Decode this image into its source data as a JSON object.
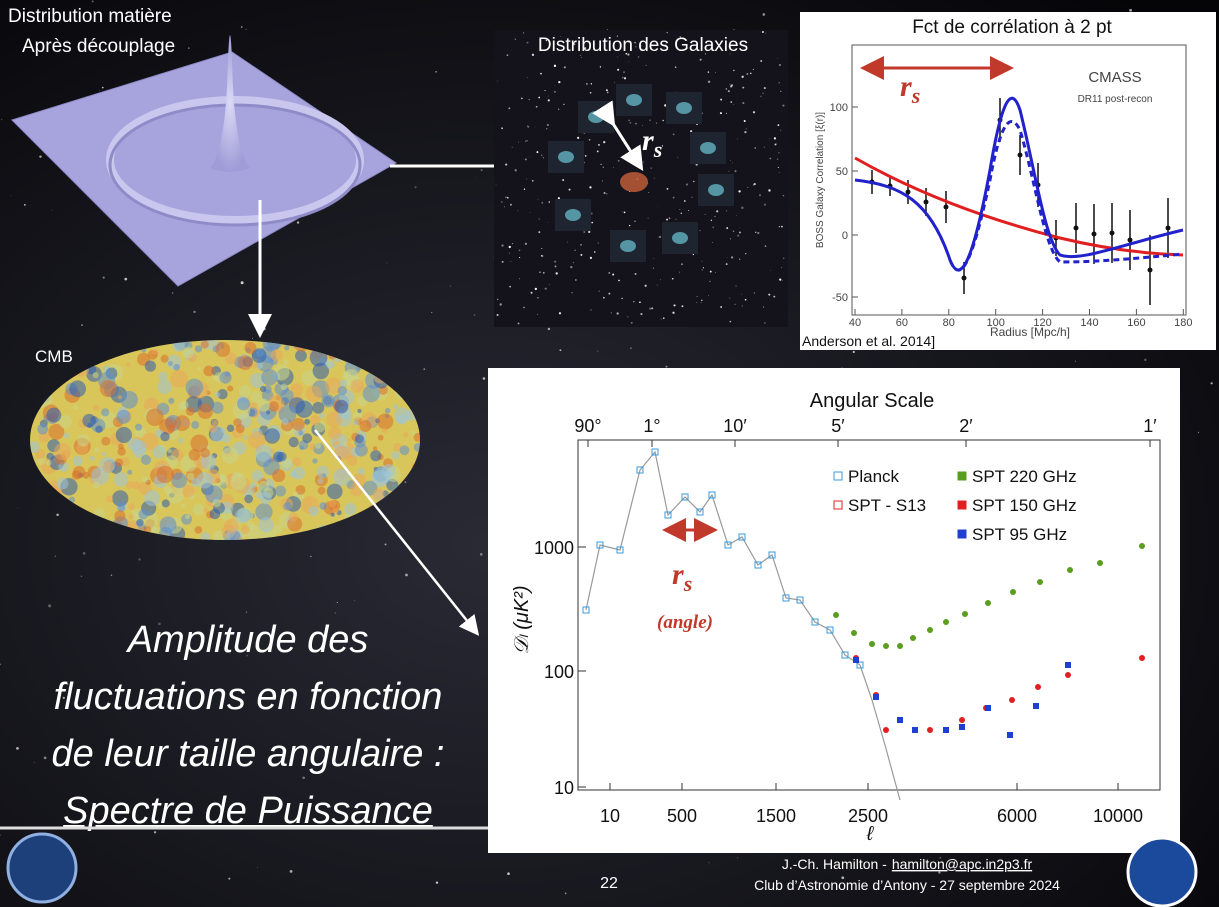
{
  "matter": {
    "title_line1": "Distribution matière",
    "title_line2": "Après découplage"
  },
  "galaxies": {
    "title": "Distribution des Galaxies",
    "rs": {
      "symbol": "r",
      "subscript": "s"
    }
  },
  "correlation": {
    "title": "Fct de corrélation à 2 pt",
    "rs": {
      "symbol": "r",
      "subscript": "s"
    },
    "legend_title": "CMASS",
    "legend_subtitle": "DR11 post-recon",
    "y_label": "BOSS Galaxy Correlation [ξ(r)]",
    "x_label": "Radius [Mpc/h]",
    "y_ticks": [
      "100",
      "50",
      "0",
      "-50"
    ],
    "x_ticks": [
      "40",
      "60",
      "80",
      "100",
      "120",
      "140",
      "160",
      "180"
    ],
    "citation": "Anderson et al. 2014]"
  },
  "cmb": {
    "label": "CMB"
  },
  "power_spectrum": {
    "title": "Angular Scale",
    "top_ticks": [
      "90°",
      "1°",
      "10′",
      "5′",
      "2′",
      "1′"
    ],
    "y_label": "𝒟ₗ (μK²)",
    "y_ticks": [
      "1000",
      "100",
      "10"
    ],
    "x_ticks": [
      "10",
      "500",
      "1500",
      "2500",
      "6000",
      "10000"
    ],
    "x_label": "ℓ",
    "legend": [
      "Planck",
      "SPT - S13",
      "SPT 220 GHz",
      "SPT 150 GHz",
      "SPT 95 GHz"
    ],
    "rs": {
      "symbol": "r",
      "subscript": "s"
    },
    "rs_note": "(angle)"
  },
  "caption": {
    "lines": [
      "Amplitude des",
      "fluctuations en fonction",
      "de leur taille angulaire :",
      "Spectre de Puissance"
    ]
  },
  "footer": {
    "page": "22",
    "author": "J.-Ch. Hamilton -",
    "email": "hamilton@apc.in2p3.fr",
    "event": "Club d’Astronomie d’Antony - 27 septembre 2024"
  }
}
